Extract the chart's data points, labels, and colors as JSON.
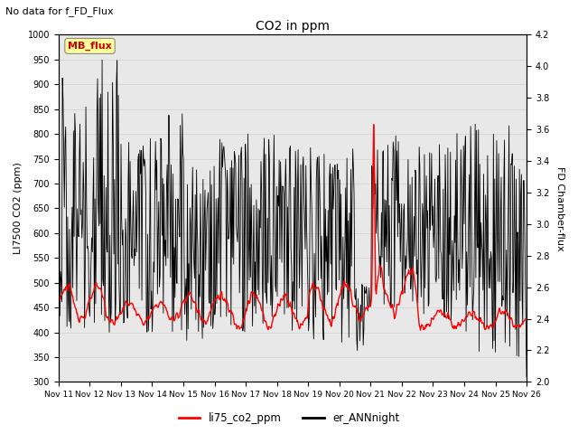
{
  "title": "CO2 in ppm",
  "subtitle": "No data for f_FD_Flux",
  "ylabel_left": "LI7500 CO2 (ppm)",
  "ylabel_right": "FD Chamber-flux",
  "ylim_left": [
    300,
    1000
  ],
  "ylim_right": [
    2.0,
    4.2
  ],
  "yticks_left": [
    300,
    350,
    400,
    450,
    500,
    550,
    600,
    650,
    700,
    750,
    800,
    850,
    900,
    950,
    1000
  ],
  "yticks_right": [
    2.0,
    2.2,
    2.4,
    2.6,
    2.8,
    3.0,
    3.2,
    3.4,
    3.6,
    3.8,
    4.0,
    4.2
  ],
  "xtick_labels": [
    "Nov 11",
    "Nov 12",
    "Nov 13",
    "Nov 14",
    "Nov 15",
    "Nov 16",
    "Nov 17",
    "Nov 18",
    "Nov 19",
    "Nov 20",
    "Nov 21",
    "Nov 22",
    "Nov 23",
    "Nov 24",
    "Nov 25",
    "Nov 26"
  ],
  "color_red": "#ff0000",
  "color_black": "#000000",
  "color_mb_flux_box": "#ffff99",
  "color_mb_flux_text": "#cc0000",
  "legend_labels": [
    "li75_co2_ppm",
    "er_ANNnight"
  ],
  "grid_color": "#d0d0d0",
  "background_color": "#ffffff",
  "plot_bg_color": "#e8e8e8"
}
